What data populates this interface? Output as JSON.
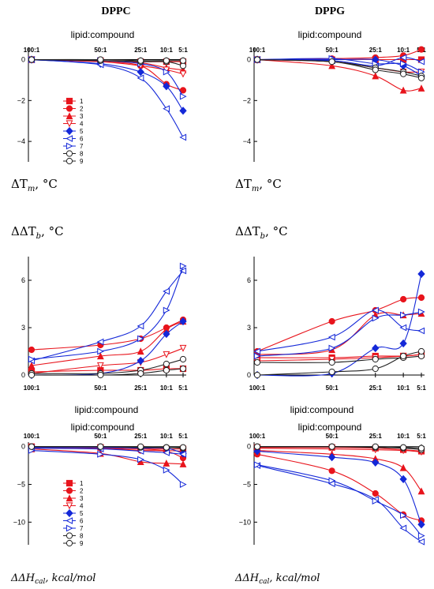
{
  "column_titles": [
    "DPPC",
    "DPPG"
  ],
  "x_axis_title": "lipid:compound",
  "categories": [
    "100:1",
    "50:1",
    "25:1",
    "10:1",
    "5:1"
  ],
  "y_labels": {
    "tm": [
      "ΔT",
      "m",
      ", °C"
    ],
    "tb": [
      "ΔΔT",
      "b",
      ", °C"
    ],
    "hcal": [
      "ΔΔH",
      "cal",
      ", kcal/mol"
    ]
  },
  "legend": [
    "1",
    "2",
    "3",
    "4",
    "5",
    "6",
    "7",
    "8",
    "9"
  ],
  "series_styles": [
    {
      "name": "1",
      "color": "#e8141c",
      "marker": "square",
      "filled": true
    },
    {
      "name": "2",
      "color": "#e8141c",
      "marker": "circle",
      "filled": true
    },
    {
      "name": "3",
      "color": "#e8141c",
      "marker": "triangle-up",
      "filled": true
    },
    {
      "name": "4",
      "color": "#e8141c",
      "marker": "triangle-down",
      "filled": false
    },
    {
      "name": "5",
      "color": "#1428d8",
      "marker": "diamond",
      "filled": true
    },
    {
      "name": "6",
      "color": "#1428d8",
      "marker": "triangle-left",
      "filled": false
    },
    {
      "name": "7",
      "color": "#1428d8",
      "marker": "triangle-right",
      "filled": false
    },
    {
      "name": "8",
      "color": "#222222",
      "marker": "circle",
      "filled": false
    },
    {
      "name": "9",
      "color": "#222222",
      "marker": "circle",
      "filled": false
    }
  ],
  "chart_data": [
    {
      "id": "dppc_tm",
      "type": "line",
      "column": "DPPC",
      "ylim": [
        -5,
        0.6
      ],
      "yticks": [
        0,
        -2,
        -4
      ],
      "categories": [
        "100:1",
        "50:1",
        "25:1",
        "10:1",
        "5:1"
      ],
      "series": [
        {
          "name": "1",
          "values": [
            0,
            -0.05,
            -0.1,
            -0.1,
            -0.1
          ]
        },
        {
          "name": "2",
          "values": [
            0,
            -0.1,
            -0.3,
            -1.2,
            -1.5
          ]
        },
        {
          "name": "3",
          "values": [
            0,
            -0.05,
            -0.15,
            -0.4,
            -0.5
          ]
        },
        {
          "name": "4",
          "values": [
            0,
            -0.1,
            -0.3,
            -0.5,
            -0.7
          ]
        },
        {
          "name": "5",
          "values": [
            0,
            -0.2,
            -0.6,
            -1.3,
            -2.5
          ]
        },
        {
          "name": "6",
          "values": [
            0,
            -0.25,
            -0.9,
            -2.4,
            -3.8
          ]
        },
        {
          "name": "7",
          "values": [
            0,
            -0.05,
            -0.2,
            -0.6,
            -1.8
          ]
        },
        {
          "name": "8",
          "values": [
            0,
            -0.05,
            -0.1,
            -0.1,
            -0.3
          ]
        },
        {
          "name": "9",
          "values": [
            0,
            0,
            -0.05,
            -0.05,
            -0.05
          ]
        }
      ]
    },
    {
      "id": "dppg_tm",
      "type": "line",
      "column": "DPPG",
      "ylim": [
        -5,
        0.6
      ],
      "yticks": [
        0,
        -2,
        -4
      ],
      "categories": [
        "100:1",
        "50:1",
        "25:1",
        "10:1",
        "5:1"
      ],
      "series": [
        {
          "name": "1",
          "values": [
            0,
            0,
            0,
            0,
            0
          ]
        },
        {
          "name": "2",
          "values": [
            0,
            0.05,
            0.1,
            0.2,
            0.5
          ]
        },
        {
          "name": "3",
          "values": [
            0,
            -0.3,
            -0.8,
            -1.5,
            -1.4
          ]
        },
        {
          "name": "4",
          "values": [
            0,
            -0.1,
            -0.4,
            -0.6,
            -0.6
          ]
        },
        {
          "name": "5",
          "values": [
            0,
            0,
            0,
            -0.3,
            -0.8
          ]
        },
        {
          "name": "6",
          "values": [
            0,
            -0.05,
            -0.3,
            0.1,
            -0.1
          ]
        },
        {
          "name": "7",
          "values": [
            0,
            0.05,
            -0.2,
            -0.2,
            -0.6
          ]
        },
        {
          "name": "8",
          "values": [
            0,
            -0.1,
            -0.4,
            -0.6,
            -0.8
          ]
        },
        {
          "name": "9",
          "values": [
            0,
            -0.1,
            -0.5,
            -0.7,
            -0.9
          ]
        }
      ]
    },
    {
      "id": "dppc_tb",
      "type": "line",
      "column": "DPPC",
      "ylim": [
        0,
        7.5
      ],
      "yticks": [
        0,
        3,
        6
      ],
      "categories": [
        "100:1",
        "50:1",
        "25:1",
        "10:1",
        "5:1"
      ],
      "series": [
        {
          "name": "1",
          "values": [
            0.2,
            0.3,
            0.3,
            0.4,
            0.4
          ]
        },
        {
          "name": "2",
          "values": [
            1.6,
            1.9,
            2.3,
            3.0,
            3.5
          ]
        },
        {
          "name": "3",
          "values": [
            0.6,
            1.2,
            1.5,
            2.9,
            3.4
          ]
        },
        {
          "name": "4",
          "values": [
            0.1,
            0.6,
            0.8,
            1.3,
            1.7
          ]
        },
        {
          "name": "5",
          "values": [
            0,
            0.1,
            0.9,
            2.6,
            3.4
          ]
        },
        {
          "name": "6",
          "values": [
            0.9,
            2.1,
            3.1,
            5.3,
            6.6
          ]
        },
        {
          "name": "7",
          "values": [
            1.0,
            1.5,
            2.3,
            4.1,
            6.9
          ]
        },
        {
          "name": "8",
          "values": [
            0.1,
            0.1,
            0.3,
            0.7,
            1.0
          ]
        },
        {
          "name": "9",
          "values": [
            0,
            0,
            0.1,
            0.3,
            0.4
          ]
        }
      ]
    },
    {
      "id": "dppg_tb",
      "type": "line",
      "column": "DPPG",
      "ylim": [
        0,
        7.5
      ],
      "yticks": [
        0,
        3,
        6
      ],
      "categories": [
        "100:1",
        "50:1",
        "25:1",
        "10:1",
        "5:1"
      ],
      "series": [
        {
          "name": "1",
          "values": [
            1.1,
            1.1,
            1.2,
            1.2,
            1.3
          ]
        },
        {
          "name": "2",
          "values": [
            1.5,
            3.4,
            4.1,
            4.8,
            4.9
          ]
        },
        {
          "name": "3",
          "values": [
            1.3,
            1.6,
            3.8,
            3.8,
            3.9
          ]
        },
        {
          "name": "4",
          "values": [
            0.9,
            1.0,
            1.1,
            1.2,
            1.3
          ]
        },
        {
          "name": "5",
          "values": [
            0,
            0.1,
            1.7,
            2.0,
            6.4
          ]
        },
        {
          "name": "6",
          "values": [
            1.5,
            2.4,
            4.1,
            3.0,
            2.8
          ]
        },
        {
          "name": "7",
          "values": [
            1.2,
            1.7,
            3.6,
            3.8,
            4.0
          ]
        },
        {
          "name": "8",
          "values": [
            0.8,
            0.8,
            1.0,
            1.1,
            1.2
          ]
        },
        {
          "name": "9",
          "values": [
            0,
            0.2,
            0.4,
            1.2,
            1.5
          ]
        }
      ]
    },
    {
      "id": "dppc_hcal",
      "type": "line",
      "column": "DPPC",
      "ylim": [
        -13,
        0.6
      ],
      "yticks": [
        0,
        -5,
        -10
      ],
      "categories": [
        "100:1",
        "50:1",
        "25:1",
        "10:1",
        "5:1"
      ],
      "series": [
        {
          "name": "1",
          "values": [
            0,
            -0.1,
            -0.2,
            -0.3,
            -0.3
          ]
        },
        {
          "name": "2",
          "values": [
            0,
            -0.2,
            -0.5,
            -0.6,
            -1.5
          ]
        },
        {
          "name": "3",
          "values": [
            -0.3,
            -0.9,
            -2.0,
            -2.2,
            -2.3
          ]
        },
        {
          "name": "4",
          "values": [
            -0.1,
            -0.2,
            -0.3,
            -0.5,
            -0.6
          ]
        },
        {
          "name": "5",
          "values": [
            -0.1,
            -0.1,
            -0.2,
            -0.2,
            -0.9
          ]
        },
        {
          "name": "6",
          "values": [
            -0.2,
            -0.3,
            -0.6,
            -0.8,
            -1.0
          ]
        },
        {
          "name": "7",
          "values": [
            -0.5,
            -1.0,
            -1.7,
            -3.1,
            -5.0
          ]
        },
        {
          "name": "8",
          "values": [
            0,
            0,
            -0.1,
            -0.1,
            -0.2
          ]
        },
        {
          "name": "9",
          "values": [
            0,
            0,
            0,
            -0.1,
            -0.1
          ]
        }
      ]
    },
    {
      "id": "dppg_hcal",
      "type": "line",
      "column": "DPPG",
      "ylim": [
        -13,
        0.6
      ],
      "yticks": [
        0,
        -5,
        -10
      ],
      "categories": [
        "100:1",
        "50:1",
        "25:1",
        "10:1",
        "5:1"
      ],
      "series": [
        {
          "name": "1",
          "values": [
            -0.1,
            -0.1,
            -0.2,
            -0.4,
            -0.6
          ]
        },
        {
          "name": "2",
          "values": [
            -1.0,
            -3.2,
            -6.2,
            -9.0,
            -9.8
          ]
        },
        {
          "name": "3",
          "values": [
            -0.5,
            -1.0,
            -1.6,
            -2.8,
            -5.9
          ]
        },
        {
          "name": "4",
          "values": [
            -0.2,
            -0.3,
            -0.4,
            -0.5,
            -0.7
          ]
        },
        {
          "name": "5",
          "values": [
            -0.6,
            -1.4,
            -2.1,
            -4.3,
            -10.3
          ]
        },
        {
          "name": "6",
          "values": [
            -2.5,
            -4.9,
            -7.0,
            -10.8,
            -12.6
          ]
        },
        {
          "name": "7",
          "values": [
            -2.4,
            -4.5,
            -7.2,
            -9.1,
            -11.8
          ]
        },
        {
          "name": "8",
          "values": [
            0,
            0,
            -0.1,
            -0.2,
            -0.4
          ]
        },
        {
          "name": "9",
          "values": [
            0,
            0,
            0,
            -0.1,
            -0.2
          ]
        }
      ]
    }
  ]
}
